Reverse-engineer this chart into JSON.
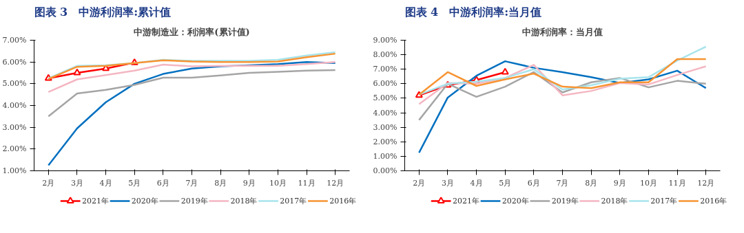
{
  "chart_data": [
    {
      "type": "line",
      "title": "图表 3　中游利润率:累计值",
      "subtitle": "中游制造业：利润率(累计值)",
      "categories": [
        "2月",
        "3月",
        "4月",
        "5月",
        "6月",
        "7月",
        "8月",
        "9月",
        "10月",
        "11月",
        "12月"
      ],
      "ylim": [
        1,
        7
      ],
      "yticks": [
        {
          "value": 1,
          "label": "1.00%"
        },
        {
          "value": 2,
          "label": "2.00%"
        },
        {
          "value": 3,
          "label": "3.00%"
        },
        {
          "value": 4,
          "label": "4.00%"
        },
        {
          "value": 5,
          "label": "5.00%"
        },
        {
          "value": 6,
          "label": "6.00%"
        },
        {
          "value": 7,
          "label": "7.00%"
        }
      ],
      "grid": false,
      "legend": "bottom",
      "series": [
        {
          "name": "2021年",
          "color": "#ff0000",
          "marker": "triangle",
          "values": [
            5.25,
            5.5,
            5.7,
            5.97,
            null,
            null,
            null,
            null,
            null,
            null,
            null
          ]
        },
        {
          "name": "2020年",
          "color": "#0070c0",
          "values": [
            1.25,
            2.95,
            4.15,
            5.0,
            5.45,
            5.7,
            5.8,
            5.85,
            5.9,
            6.0,
            5.95
          ]
        },
        {
          "name": "2019年",
          "color": "#a5a5a5",
          "values": [
            3.5,
            4.55,
            4.72,
            4.95,
            5.28,
            5.28,
            5.38,
            5.5,
            5.55,
            5.6,
            5.63
          ]
        },
        {
          "name": "2018年",
          "color": "#f4b6c2",
          "values": [
            4.62,
            5.2,
            5.4,
            5.6,
            5.88,
            5.8,
            5.82,
            5.82,
            5.82,
            5.9,
            6.0
          ]
        },
        {
          "name": "2017年",
          "color": "#a8e4ec",
          "values": [
            5.25,
            5.82,
            5.85,
            5.95,
            6.1,
            6.05,
            6.05,
            6.05,
            6.1,
            6.3,
            6.45
          ]
        },
        {
          "name": "2016年",
          "color": "#f79433",
          "values": [
            5.22,
            5.78,
            5.82,
            5.95,
            6.08,
            6.02,
            6.0,
            6.0,
            6.02,
            6.22,
            6.38
          ]
        }
      ]
    },
    {
      "type": "line",
      "title": "图表 4　中游利润率:当月值",
      "subtitle": "中游利润率：当月值",
      "categories": [
        "2月",
        "3月",
        "4月",
        "5月",
        "6月",
        "7月",
        "8月",
        "9月",
        "10月",
        "11月",
        "12月"
      ],
      "ylim": [
        0,
        9
      ],
      "yticks": [
        {
          "value": 0,
          "label": "0.00%"
        },
        {
          "value": 1,
          "label": "1.00%"
        },
        {
          "value": 2,
          "label": "2.00%"
        },
        {
          "value": 3,
          "label": "3.00%"
        },
        {
          "value": 4,
          "label": "4.00%"
        },
        {
          "value": 5,
          "label": "5.00%"
        },
        {
          "value": 6,
          "label": "6.00%"
        },
        {
          "value": 7,
          "label": "7.00%"
        },
        {
          "value": 8,
          "label": "8.00%"
        },
        {
          "value": 9,
          "label": "9.00%"
        }
      ],
      "grid": false,
      "legend": "bottom",
      "series": [
        {
          "name": "2021年",
          "color": "#ff0000",
          "marker": "triangle",
          "values": [
            5.2,
            5.9,
            6.25,
            6.8,
            null,
            null,
            null,
            null,
            null,
            null,
            null
          ]
        },
        {
          "name": "2020年",
          "color": "#0070c0",
          "values": [
            1.25,
            5.05,
            6.55,
            7.55,
            7.1,
            6.8,
            6.45,
            6.05,
            6.3,
            6.9,
            5.7
          ]
        },
        {
          "name": "2019年",
          "color": "#a5a5a5",
          "values": [
            3.5,
            6.0,
            5.1,
            5.8,
            6.8,
            5.4,
            6.1,
            6.4,
            5.75,
            6.2,
            6.0
          ]
        },
        {
          "name": "2018年",
          "color": "#f4b6c2",
          "values": [
            4.6,
            6.05,
            6.0,
            6.4,
            7.3,
            5.2,
            5.5,
            6.05,
            5.95,
            6.6,
            7.2
          ]
        },
        {
          "name": "2017年",
          "color": "#a8e4ec",
          "values": [
            5.25,
            6.0,
            6.15,
            6.4,
            7.0,
            5.6,
            5.9,
            6.35,
            6.45,
            7.6,
            8.55
          ]
        },
        {
          "name": "2016年",
          "color": "#f79433",
          "values": [
            5.25,
            6.8,
            5.85,
            6.3,
            6.7,
            5.8,
            5.7,
            6.1,
            6.1,
            7.7,
            7.7
          ]
        }
      ]
    }
  ]
}
